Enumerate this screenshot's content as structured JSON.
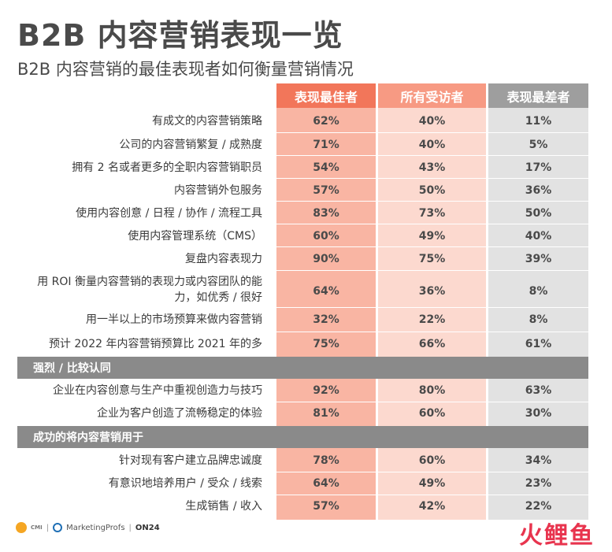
{
  "title": "B2B 内容营销表现一览",
  "subtitle": "B2B 内容营销的最佳表现者如何衡量营销情况",
  "headers": [
    "表现最佳者",
    "所有受访者",
    "表现最差者"
  ],
  "rows": [
    {
      "label": "有成文的内容营销策略",
      "v": [
        "62%",
        "40%",
        "11%"
      ]
    },
    {
      "label": "公司的内容营销繁复 / 成熟度",
      "v": [
        "71%",
        "40%",
        "5%"
      ]
    },
    {
      "label": "拥有 2 名或者更多的全职内容营销职员",
      "v": [
        "54%",
        "43%",
        "17%"
      ]
    },
    {
      "label": "内容营销外包服务",
      "v": [
        "57%",
        "50%",
        "36%"
      ]
    },
    {
      "label": "使用内容创意 / 日程 / 协作 / 流程工具",
      "v": [
        "83%",
        "73%",
        "50%"
      ]
    },
    {
      "label": "使用内容管理系统（CMS）",
      "v": [
        "60%",
        "49%",
        "40%"
      ]
    },
    {
      "label": "复盘内容表现力",
      "v": [
        "90%",
        "75%",
        "39%"
      ]
    },
    {
      "label": "用 ROI 衡量内容营销的表现力或内容团队的能力，如优秀 / 很好",
      "v": [
        "64%",
        "36%",
        "8%"
      ]
    },
    {
      "label": "用一半以上的市场预算来做内容营销",
      "v": [
        "32%",
        "22%",
        "8%"
      ]
    },
    {
      "label": "预计 2022 年内容营销预算比 2021 年的多",
      "v": [
        "75%",
        "66%",
        "61%"
      ]
    }
  ],
  "section1": {
    "title": "强烈 / 比较认同",
    "rows": [
      {
        "label": "企业在内容创意与生产中重视创造力与技巧",
        "v": [
          "92%",
          "80%",
          "63%"
        ]
      },
      {
        "label": "企业为客户创造了流畅稳定的体验",
        "v": [
          "81%",
          "60%",
          "30%"
        ]
      }
    ]
  },
  "section2": {
    "title": "成功的将内容营销用于",
    "rows": [
      {
        "label": "针对现有客户建立品牌忠诚度",
        "v": [
          "78%",
          "60%",
          "34%"
        ]
      },
      {
        "label": "有意识地培养用户 / 受众 / 线索",
        "v": [
          "64%",
          "49%",
          "23%"
        ]
      },
      {
        "label": "生成销售 / 收入",
        "v": [
          "57%",
          "42%",
          "22%"
        ]
      }
    ]
  },
  "footer": {
    "logo_cmi": "CMI",
    "logo_mp": "MarketingProfs",
    "logo_on24": "ON24",
    "watermark": "火鲤鱼"
  },
  "colors": {
    "best": "#f2765a",
    "all": "#f79a83",
    "worst": "#9e9e9e",
    "section": "#8a8a8a"
  }
}
